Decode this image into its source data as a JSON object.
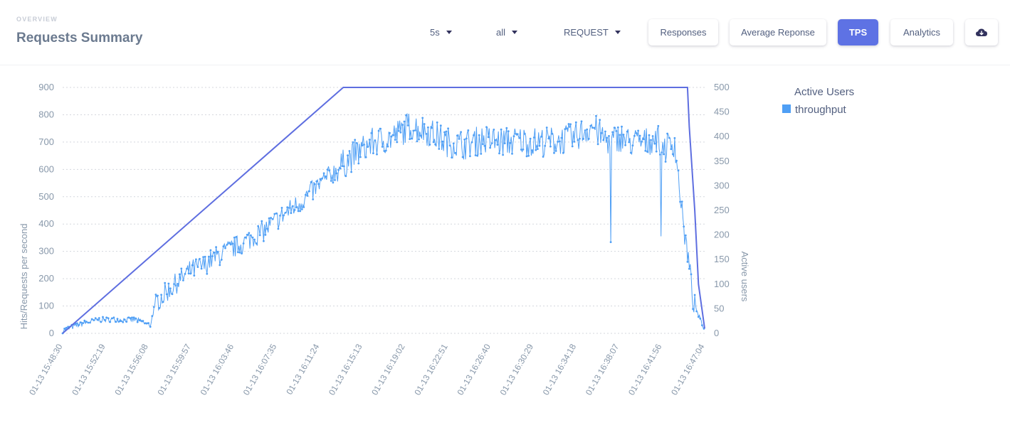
{
  "header": {
    "eyebrow": "OVERVIEW",
    "title": "Requests Summary",
    "dropdowns": [
      {
        "id": "interval",
        "value": "5s"
      },
      {
        "id": "scope",
        "value": "all"
      },
      {
        "id": "type",
        "value": "REQUEST"
      }
    ],
    "buttons": [
      {
        "label": "Responses",
        "active": false
      },
      {
        "label": "Average Reponse",
        "active": false
      },
      {
        "label": "TPS",
        "active": true
      },
      {
        "label": "Analytics",
        "active": false
      }
    ],
    "download_icon": "cloud-download-icon"
  },
  "colors": {
    "accent": "#5e72e4",
    "throughput": "#4f9ff5",
    "active_users": "#5e6ee0",
    "grid": "#d4d7dd",
    "tick": "#8898aa"
  },
  "chart_data": {
    "type": "line",
    "ylabel": "Hits/Requests per second",
    "y2label": "Active users",
    "ylim": [
      0,
      900
    ],
    "y2lim": [
      0,
      500
    ],
    "yticks": [
      0,
      100,
      200,
      300,
      400,
      500,
      600,
      700,
      800,
      900
    ],
    "y2ticks": [
      0,
      50,
      100,
      150,
      200,
      250,
      300,
      350,
      400,
      450,
      500
    ],
    "xticks": [
      "01-13 15:48:30",
      "01-13 15:52:19",
      "01-13 15:56:08",
      "01-13 15:59:57",
      "01-13 16:03:46",
      "01-13 16:07:35",
      "01-13 16:11:24",
      "01-13 16:15:13",
      "01-13 16:19:02",
      "01-13 16:22:51",
      "01-13 16:26:40",
      "01-13 16:30:29",
      "01-13 16:34:18",
      "01-13 16:38:07",
      "01-13 16:41:56",
      "01-13 16:47:04"
    ],
    "xlim_seconds": [
      0,
      3514
    ],
    "legend": {
      "title": "Active Users",
      "position": "right"
    },
    "grid": true,
    "series": [
      {
        "name": "throughput",
        "axis": "left",
        "t": [
          0,
          100,
          200,
          300,
          400,
          480,
          500,
          520,
          600,
          700,
          780,
          800,
          900,
          1000,
          1100,
          1200,
          1300,
          1400,
          1500,
          1600,
          1700,
          1800,
          1900,
          2000,
          2100,
          2200,
          2300,
          2400,
          2500,
          2600,
          2700,
          2800,
          2900,
          2950,
          3000,
          3050,
          3100,
          3200,
          3250,
          3300,
          3350,
          3400,
          3430,
          3450,
          3500,
          3514
        ],
        "y": [
          10,
          35,
          50,
          50,
          50,
          30,
          90,
          120,
          170,
          230,
          250,
          265,
          300,
          335,
          375,
          430,
          480,
          540,
          600,
          655,
          700,
          715,
          760,
          740,
          700,
          690,
          710,
          700,
          705,
          700,
          705,
          715,
          760,
          720,
          700,
          720,
          700,
          700,
          720,
          680,
          700,
          380,
          250,
          120,
          30,
          20
        ]
      },
      {
        "name": "",
        "axis": "right",
        "t": [
          0,
          1536,
          3420,
          3430,
          3460,
          3480,
          3514
        ],
        "y": [
          0,
          500,
          500,
          420,
          250,
          100,
          10
        ]
      }
    ]
  }
}
